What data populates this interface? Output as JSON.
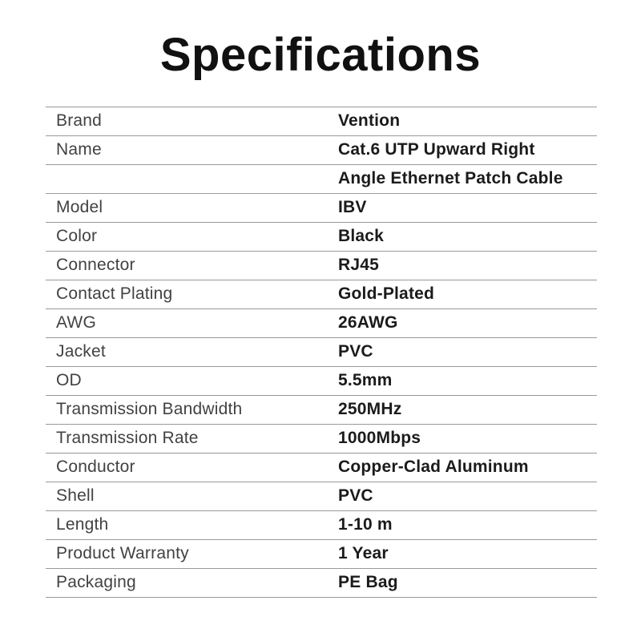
{
  "page": {
    "title": "Specifications"
  },
  "colors": {
    "background": "#ffffff",
    "title": "#111111",
    "label": "#424242",
    "value": "#1b1b1b",
    "divider": "#999999"
  },
  "table": {
    "rows": [
      {
        "label": "Brand",
        "value": "Vention"
      },
      {
        "label": "Name",
        "value": "Cat.6 UTP Upward Right"
      },
      {
        "label": "",
        "value": "Angle Ethernet Patch Cable"
      },
      {
        "label": "Model",
        "value": "IBV"
      },
      {
        "label": "Color",
        "value": "Black"
      },
      {
        "label": "Connector",
        "value": "RJ45"
      },
      {
        "label": "Contact Plating",
        "value": "Gold-Plated"
      },
      {
        "label": "AWG",
        "value": "26AWG"
      },
      {
        "label": "Jacket",
        "value": "PVC"
      },
      {
        "label": "OD",
        "value": "5.5mm"
      },
      {
        "label": "Transmission Bandwidth",
        "value": "250MHz"
      },
      {
        "label": "Transmission Rate",
        "value": "1000Mbps"
      },
      {
        "label": "Conductor",
        "value": "Copper-Clad Aluminum"
      },
      {
        "label": "Shell",
        "value": "PVC"
      },
      {
        "label": "Length",
        "value": "1-10 m"
      },
      {
        "label": "Product Warranty",
        "value": "1 Year"
      },
      {
        "label": "Packaging",
        "value": "PE Bag"
      }
    ]
  }
}
